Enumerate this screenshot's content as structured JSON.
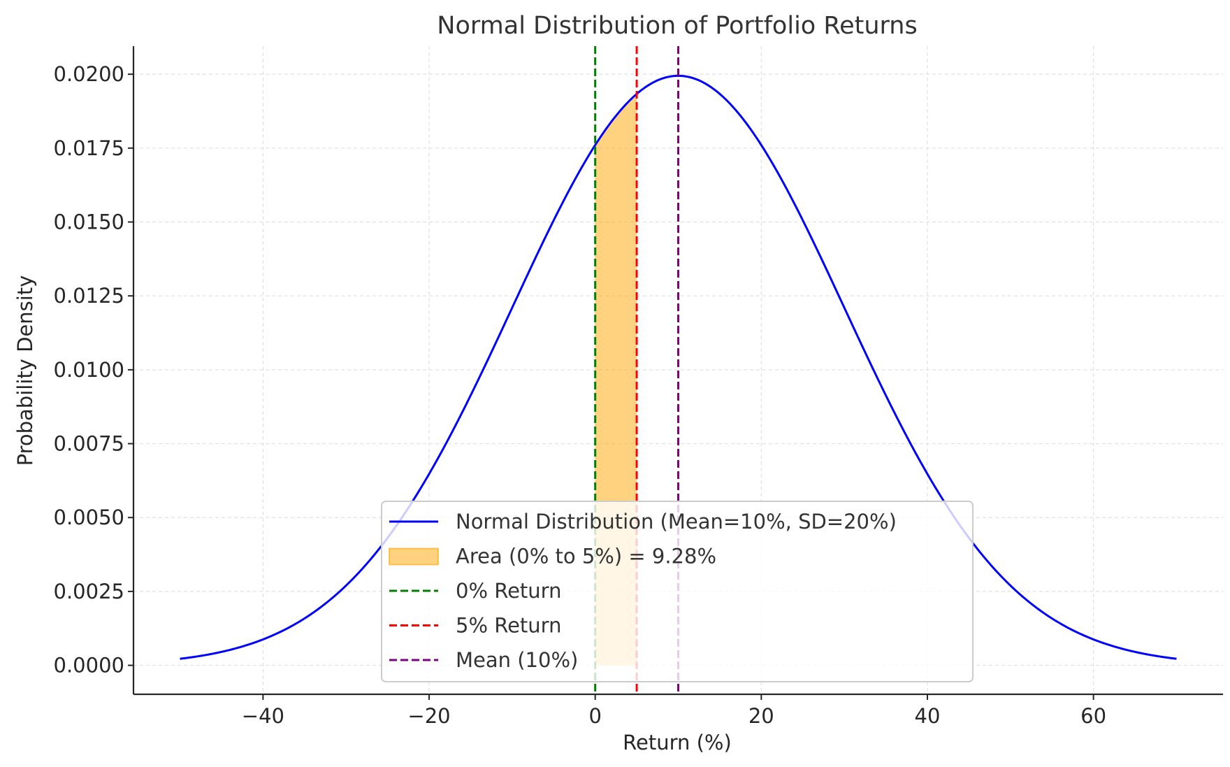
{
  "chart_data": {
    "type": "line",
    "title": "Normal Distribution of Portfolio Returns",
    "xlabel": "Return (%)",
    "ylabel": "Probability Density",
    "xlim": [
      -55.6,
      75.6
    ],
    "ylim": [
      -0.00098,
      0.02095
    ],
    "grid": true,
    "x_ticks": [
      -40,
      -20,
      0,
      20,
      40,
      60
    ],
    "x_tick_labels": [
      "−40",
      "−20",
      "0",
      "20",
      "40",
      "60"
    ],
    "y_ticks": [
      0,
      0.0025,
      0.005,
      0.0075,
      0.01,
      0.0125,
      0.015,
      0.0175,
      0.02
    ],
    "y_tick_labels": [
      "0.0000",
      "0.0025",
      "0.0050",
      "0.0075",
      "0.0100",
      "0.0125",
      "0.0150",
      "0.0175",
      "0.0200"
    ],
    "series": [
      {
        "name": "Normal Distribution (Mean=10%, SD=20%)",
        "kind": "pdf",
        "mean": 10,
        "sd": 20,
        "x_range": [
          -50,
          70
        ],
        "color": "#0000ff"
      }
    ],
    "shaded_area": {
      "name": "Area (0% to 5%) = 9.28%",
      "from": 0,
      "to": 5,
      "color": "#ffa500",
      "opacity": 0.5
    },
    "vlines": [
      {
        "name": "0% Return",
        "x": 0,
        "color": "#008000"
      },
      {
        "name": "5% Return",
        "x": 5,
        "color": "#ff0000"
      },
      {
        "name": "Mean (10%)",
        "x": 10,
        "color": "#800080"
      }
    ],
    "legend": {
      "position": "lower-center",
      "entries": [
        {
          "label": "Normal Distribution (Mean=10%, SD=20%)",
          "kind": "line",
          "color": "#0000ff"
        },
        {
          "label": "Area (0% to 5%) = 9.28%",
          "kind": "patch",
          "color": "#ffa500"
        },
        {
          "label": "0% Return",
          "kind": "dashed",
          "color": "#008000"
        },
        {
          "label": "5% Return",
          "kind": "dashed",
          "color": "#ff0000"
        },
        {
          "label": "Mean (10%)",
          "kind": "dashed",
          "color": "#800080"
        }
      ]
    }
  }
}
